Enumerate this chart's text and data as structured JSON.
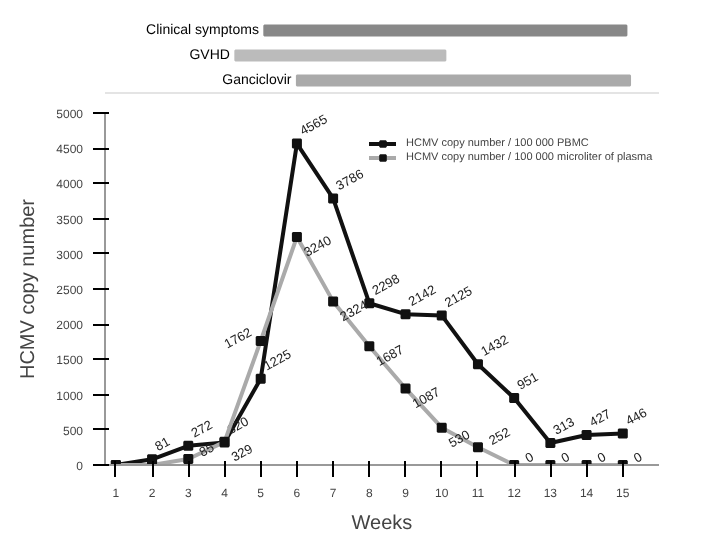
{
  "chart_data": [
    {
      "type": "bar",
      "orientation": "horizontal",
      "categories": [
        "Clinical symptoms",
        "GVHD",
        "Ganciclovir"
      ],
      "base": [
        5.1,
        4.3,
        6.0
      ],
      "values": [
        10.0,
        5.8,
        9.2
      ],
      "colors": [
        "#888888",
        "#bbbbbb",
        "#aaaaaa"
      ],
      "xlim": [
        0.7,
        16
      ],
      "tick_labels": "y"
    },
    {
      "type": "line",
      "xlabel": "Weeks",
      "ylabel": "HCMV copy number",
      "x": [
        1,
        2,
        3,
        4,
        5,
        6,
        7,
        8,
        9,
        10,
        11,
        12,
        13,
        14,
        15
      ],
      "series": [
        {
          "name": "HCMV copy number / 100 000 PBMC",
          "color": "#111111",
          "values": [
            0,
            81,
            272,
            320,
            1225,
            4565,
            3786,
            2298,
            2142,
            2125,
            1432,
            951,
            313,
            427,
            446
          ],
          "value_labels": [
            null,
            "81",
            "272",
            "320",
            "1225",
            "4565",
            "3786",
            "2298",
            "2142",
            "2125",
            "1432",
            "951",
            "313",
            "427",
            "446"
          ]
        },
        {
          "name": "HCMV copy number / 100 000 microliter of plasma",
          "color": "#aaaaaa",
          "values": [
            0,
            0,
            85,
            329,
            1762,
            3240,
            2324,
            1687,
            1087,
            530,
            252,
            0,
            0,
            0,
            0
          ],
          "value_labels": [
            null,
            null,
            "85",
            "329",
            "1762",
            "3240",
            "2324",
            "1687",
            "1087",
            "530",
            "252",
            "0",
            "0",
            "0",
            "0"
          ]
        }
      ],
      "marker": "square",
      "legend": "top right",
      "xlim": [
        0.7,
        16
      ],
      "xticks": [
        1,
        2,
        3,
        4,
        5,
        6,
        7,
        8,
        9,
        10,
        11,
        12,
        13,
        14,
        15
      ],
      "ylim": [
        0,
        5000
      ],
      "yticks": [
        0,
        500,
        1000,
        1500,
        2000,
        2500,
        3000,
        3500,
        4000,
        4500,
        5000
      ]
    }
  ]
}
